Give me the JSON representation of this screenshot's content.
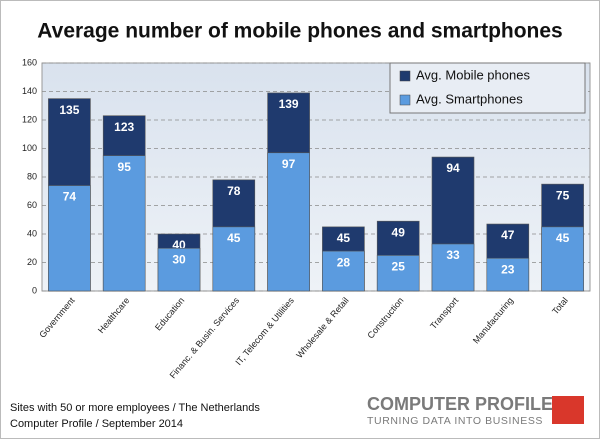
{
  "chart_data": {
    "type": "bar",
    "title": "Average number of mobile phones and smartphones",
    "categories": [
      "Government",
      "Healthcare",
      "Education",
      "Financ. & Busin. Services",
      "IT, Telecom & Utilities",
      "Wholesale & Retail",
      "Construction",
      "Transport",
      "Manufacturing",
      "Total"
    ],
    "series": [
      {
        "name": "Avg. Mobile phones",
        "color": "#1f3a6e",
        "values": [
          135,
          123,
          40,
          78,
          139,
          45,
          49,
          94,
          47,
          75
        ]
      },
      {
        "name": "Avg. Smartphones",
        "color": "#5b9bdf",
        "values": [
          74,
          95,
          30,
          45,
          97,
          28,
          25,
          33,
          23,
          45
        ]
      }
    ],
    "ylim": [
      0,
      160
    ],
    "yticks": [
      0,
      20,
      40,
      60,
      80,
      100,
      120,
      140,
      160
    ],
    "grid": true,
    "legend": "top-right"
  },
  "footer": [
    "Sites with 50 or more employees / The Netherlands",
    "Computer Profile / September 2014"
  ],
  "logo": {
    "name": "COMPUTER PROFILE",
    "tagline": "TURNING DATA INTO BUSINESS"
  }
}
